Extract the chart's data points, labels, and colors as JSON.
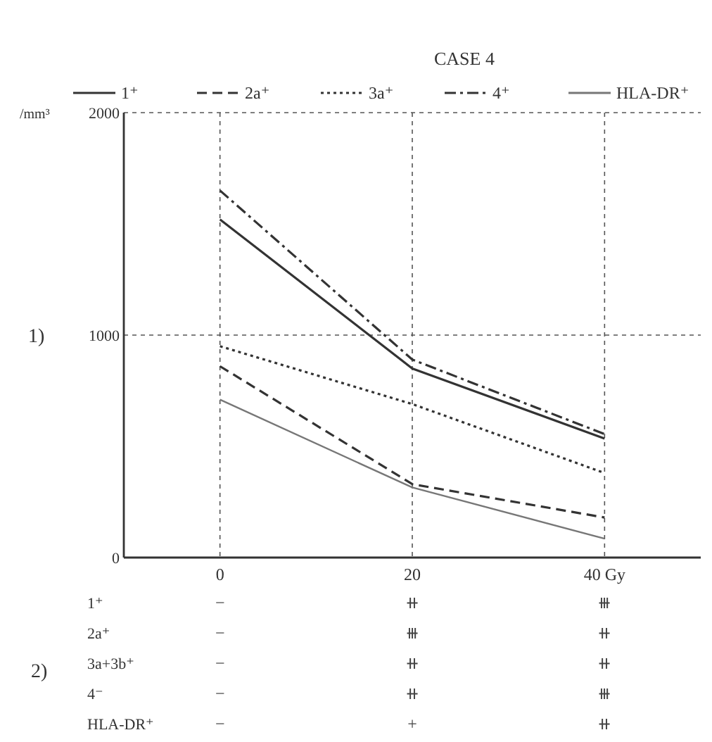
{
  "chart_data": {
    "type": "line",
    "title": "CASE 4",
    "ylabel": "/mm³",
    "x": [
      0,
      20,
      40
    ],
    "xlim": [
      -10,
      50
    ],
    "xticks": [
      0,
      20,
      {
        "value": 40,
        "label": "40 Gy"
      }
    ],
    "ylim": [
      0,
      2000
    ],
    "yticks": [
      0,
      1000,
      2000
    ],
    "grid": true,
    "legend": "top",
    "marker": "none",
    "series": [
      {
        "name": "1⁺",
        "color": "#333333",
        "line_style": "solid",
        "values": [
          1520,
          850,
          535
        ]
      },
      {
        "name": "2a⁺",
        "color": "#333333",
        "line_style": "dashed",
        "values": [
          860,
          330,
          180
        ]
      },
      {
        "name": "3a⁺",
        "color": "#333333",
        "line_style": "dotted",
        "values": [
          950,
          690,
          380
        ]
      },
      {
        "name": "4⁺",
        "color": "#333333",
        "line_style": "dashdot",
        "values": [
          1650,
          890,
          555
        ]
      },
      {
        "name": "HLA-DR⁺",
        "color": "#777777",
        "line_style": "solid",
        "values": [
          710,
          315,
          85
        ]
      }
    ],
    "annotations": [
      "1)",
      "2)",
      "1⁺",
      "−",
      "⧺",
      "⧻",
      "2a⁺",
      "−",
      "⧻",
      "⧺",
      "3a+3b⁺",
      "−",
      "⧺",
      "⧺",
      "4⁻",
      "−",
      "⧺",
      "⧻",
      "HLA-DR⁺",
      "−",
      "+",
      "⧺"
    ]
  }
}
